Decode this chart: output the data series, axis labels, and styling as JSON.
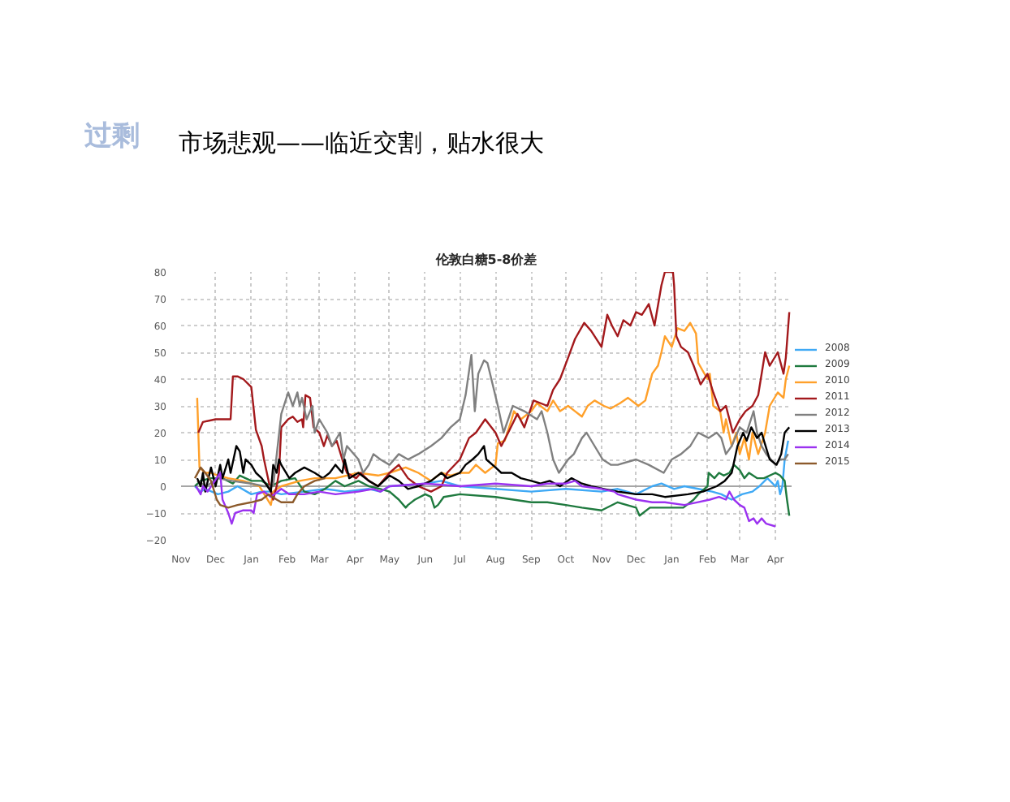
{
  "chart_data": {
    "type": "line",
    "title": "伦敦白糖5-8价差",
    "annotations": [
      "过剩",
      "市场悲观——临近交割，贴水很大"
    ],
    "xlim": [
      "2013-11-01",
      "2015-04-15"
    ],
    "xticks": [
      {
        "value": "2013-11-01",
        "label": "Nov"
      },
      {
        "value": "2013-12-01",
        "label": "Dec"
      },
      {
        "value": "2014-01-01",
        "label": "Jan"
      },
      {
        "value": "2014-02-01",
        "label": "Feb"
      },
      {
        "value": "2014-03-01",
        "label": "Mar"
      },
      {
        "value": "2014-04-01",
        "label": "Apr"
      },
      {
        "value": "2014-05-01",
        "label": "May"
      },
      {
        "value": "2014-06-01",
        "label": "Jun"
      },
      {
        "value": "2014-07-01",
        "label": "Jul"
      },
      {
        "value": "2014-08-01",
        "label": "Aug"
      },
      {
        "value": "2014-09-01",
        "label": "Sep"
      },
      {
        "value": "2014-10-01",
        "label": "Oct"
      },
      {
        "value": "2014-11-01",
        "label": "Nov"
      },
      {
        "value": "2014-12-01",
        "label": "Dec"
      },
      {
        "value": "2015-01-01",
        "label": "Jan"
      },
      {
        "value": "2015-02-01",
        "label": "Feb"
      },
      {
        "value": "2015-03-01",
        "label": "Mar"
      },
      {
        "value": "2015-04-01",
        "label": "Apr"
      }
    ],
    "ylim": [
      -20,
      80
    ],
    "yticks": [
      -20,
      -10,
      0,
      10,
      20,
      30,
      40,
      50,
      60,
      70,
      80
    ],
    "grid": true,
    "legend": "right",
    "line_style": "solid",
    "ref_lines": [
      {
        "axis": "y",
        "value": 0,
        "color": "#a6a6a6"
      }
    ],
    "series": [
      {
        "name": "2008",
        "color": "#3fa9f5",
        "x": [
          "2013-11-13",
          "2013-11-18",
          "2013-11-22",
          "2013-12-03",
          "2013-12-12",
          "2013-12-20",
          "2014-01-01",
          "2014-01-10",
          "2014-01-18",
          "2014-01-27",
          "2014-02-16",
          "2014-03-06",
          "2014-03-23",
          "2014-04-13",
          "2014-04-23",
          "2014-05-01",
          "2014-06-01",
          "2014-06-15",
          "2014-07-01",
          "2014-08-01",
          "2014-09-01",
          "2014-10-01",
          "2014-11-01",
          "2014-11-15",
          "2014-12-01",
          "2014-12-15",
          "2014-12-23",
          "2015-01-03",
          "2015-01-12",
          "2015-01-24",
          "2015-02-05",
          "2015-02-13",
          "2015-02-22",
          "2015-03-03",
          "2015-03-12",
          "2015-03-18",
          "2015-03-25",
          "2015-04-01",
          "2015-04-03",
          "2015-04-05",
          "2015-04-07",
          "2015-04-09",
          "2015-04-12"
        ],
        "values": [
          0,
          -2,
          -1,
          -3,
          -2,
          0,
          -3,
          -2,
          -2,
          -3,
          -2,
          -1,
          -2,
          -1,
          -2,
          0,
          1,
          2,
          0,
          -1,
          -2,
          -1,
          -2,
          -1,
          -3,
          0,
          1,
          -1,
          0,
          -1,
          -2,
          -3,
          -5,
          -3,
          -2,
          0,
          3,
          0,
          2,
          -3,
          0,
          10,
          17
        ]
      },
      {
        "name": "2009",
        "color": "#1f7a3f",
        "x": [
          "2013-11-13",
          "2013-11-18",
          "2013-11-27",
          "2013-12-07",
          "2013-12-16",
          "2013-12-22",
          "2014-01-01",
          "2014-01-10",
          "2014-01-18",
          "2014-01-27",
          "2014-02-08",
          "2014-02-16",
          "2014-02-25",
          "2014-03-06",
          "2014-03-15",
          "2014-03-23",
          "2014-04-04",
          "2014-04-13",
          "2014-04-23",
          "2014-05-01",
          "2014-05-09",
          "2014-05-15",
          "2014-05-17",
          "2014-05-23",
          "2014-06-01",
          "2014-06-06",
          "2014-06-09",
          "2014-06-12",
          "2014-06-17",
          "2014-07-01",
          "2014-08-01",
          "2014-09-01",
          "2014-09-15",
          "2014-10-01",
          "2014-10-15",
          "2014-11-01",
          "2014-11-15",
          "2014-12-01",
          "2014-12-04",
          "2014-12-13",
          "2014-12-26",
          "2015-01-11",
          "2015-01-20",
          "2015-01-24",
          "2015-02-01",
          "2015-02-02",
          "2015-02-07",
          "2015-02-11",
          "2015-02-15",
          "2015-02-20",
          "2015-02-24",
          "2015-03-01",
          "2015-03-05",
          "2015-03-09",
          "2015-03-16",
          "2015-03-22",
          "2015-04-01",
          "2015-04-05",
          "2015-04-09",
          "2015-04-11",
          "2015-04-13"
        ],
        "values": [
          0,
          2,
          3,
          3,
          1,
          4,
          2,
          2,
          0,
          2,
          3,
          -2,
          -3,
          -1,
          2,
          0,
          2,
          0,
          -1,
          -2,
          -5,
          -8,
          -7,
          -5,
          -3,
          -4,
          -8,
          -7,
          -4,
          -3,
          -4,
          -6,
          -6,
          -7,
          -8,
          -9,
          -6,
          -8,
          -11,
          -8,
          -8,
          -8,
          -5,
          -3,
          0,
          5,
          3,
          5,
          4,
          5,
          8,
          6,
          3,
          5,
          3,
          3,
          5,
          4,
          2,
          -5,
          -11
        ]
      },
      {
        "name": "2010",
        "color": "#ffa02a",
        "x": [
          "2013-11-15",
          "2013-11-17",
          "2013-11-22",
          "2013-11-27",
          "2013-12-03",
          "2013-12-12",
          "2013-12-25",
          "2014-01-08",
          "2014-01-18",
          "2014-01-20",
          "2014-01-27",
          "2014-02-12",
          "2014-02-25",
          "2014-03-15",
          "2014-04-04",
          "2014-04-21",
          "2014-05-01",
          "2014-05-15",
          "2014-05-26",
          "2014-06-06",
          "2014-06-15",
          "2014-06-23",
          "2014-07-01",
          "2014-07-09",
          "2014-07-15",
          "2014-07-23",
          "2014-08-01",
          "2014-08-03",
          "2014-08-09",
          "2014-08-15",
          "2014-08-17",
          "2014-08-23",
          "2014-09-01",
          "2014-09-06",
          "2014-09-15",
          "2014-09-20",
          "2014-09-26",
          "2014-10-03",
          "2014-10-09",
          "2014-10-15",
          "2014-10-20",
          "2014-10-26",
          "2014-11-03",
          "2014-11-09",
          "2014-11-17",
          "2014-11-24",
          "2014-12-03",
          "2014-12-09",
          "2014-12-15",
          "2014-12-20",
          "2014-12-23",
          "2014-12-26",
          "2015-01-01",
          "2015-01-06",
          "2015-01-12",
          "2015-01-17",
          "2015-01-22",
          "2015-01-24",
          "2015-02-01",
          "2015-02-03",
          "2015-02-06",
          "2015-02-12",
          "2015-02-15",
          "2015-02-17",
          "2015-02-22",
          "2015-02-26",
          "2015-03-01",
          "2015-03-05",
          "2015-03-09",
          "2015-03-12",
          "2015-03-17",
          "2015-03-23",
          "2015-03-27",
          "2015-04-03",
          "2015-04-08",
          "2015-04-10",
          "2015-04-13"
        ],
        "values": [
          33,
          7,
          5,
          5,
          4,
          3,
          2,
          0,
          -7,
          -2,
          0,
          2,
          3,
          3,
          5,
          4,
          5,
          7,
          5,
          2,
          5,
          4,
          5,
          5,
          8,
          5,
          8,
          16,
          17,
          25,
          28,
          25,
          28,
          31,
          28,
          32,
          28,
          30,
          28,
          26,
          30,
          32,
          30,
          29,
          31,
          33,
          30,
          32,
          42,
          45,
          50,
          56,
          52,
          59,
          58,
          61,
          57,
          46,
          40,
          42,
          30,
          28,
          20,
          25,
          15,
          20,
          12,
          18,
          10,
          20,
          12,
          20,
          30,
          35,
          33,
          40,
          45
        ]
      },
      {
        "name": "2011",
        "color": "#a3191c",
        "x": [
          "2013-11-16",
          "2013-11-20",
          "2013-12-01",
          "2013-12-08",
          "2013-12-14",
          "2013-12-16",
          "2013-12-20",
          "2013-12-25",
          "2014-01-01",
          "2014-01-05",
          "2014-01-10",
          "2014-01-12",
          "2014-01-16",
          "2014-01-18",
          "2014-01-20",
          "2014-01-23",
          "2014-01-25",
          "2014-01-27",
          "2014-02-02",
          "2014-02-06",
          "2014-02-10",
          "2014-02-14",
          "2014-02-15",
          "2014-02-17",
          "2014-02-21",
          "2014-02-24",
          "2014-03-01",
          "2014-03-05",
          "2014-03-08",
          "2014-03-12",
          "2014-03-16",
          "2014-03-21",
          "2014-03-25",
          "2014-04-02",
          "2014-04-06",
          "2014-04-13",
          "2014-04-21",
          "2014-05-01",
          "2014-05-09",
          "2014-05-17",
          "2014-05-26",
          "2014-06-06",
          "2014-06-15",
          "2014-06-20",
          "2014-07-01",
          "2014-07-09",
          "2014-07-15",
          "2014-07-23",
          "2014-08-01",
          "2014-08-06",
          "2014-08-12",
          "2014-08-20",
          "2014-08-26",
          "2014-09-03",
          "2014-09-15",
          "2014-09-20",
          "2014-09-26",
          "2014-10-03",
          "2014-10-09",
          "2014-10-17",
          "2014-10-23",
          "2014-11-01",
          "2014-11-06",
          "2014-11-10",
          "2014-11-15",
          "2014-11-20",
          "2014-11-26",
          "2014-12-01",
          "2014-12-06",
          "2014-12-12",
          "2014-12-17",
          "2014-12-23",
          "2014-12-26",
          "2015-01-02",
          "2015-01-03",
          "2015-01-05",
          "2015-01-09",
          "2015-01-15",
          "2015-01-20",
          "2015-01-26",
          "2015-02-01",
          "2015-02-06",
          "2015-02-12",
          "2015-02-17",
          "2015-02-23",
          "2015-03-01",
          "2015-03-06",
          "2015-03-12",
          "2015-03-17",
          "2015-03-23",
          "2015-03-27",
          "2015-04-03",
          "2015-04-08",
          "2015-04-10",
          "2015-04-13"
        ],
        "values": [
          20,
          24,
          25,
          25,
          25,
          41,
          41,
          40,
          37,
          21,
          15,
          10,
          2,
          -2,
          -5,
          0,
          5,
          22,
          25,
          26,
          24,
          25,
          22,
          34,
          33,
          22,
          20,
          15,
          19,
          15,
          17,
          10,
          5,
          3,
          5,
          2,
          0,
          5,
          8,
          3,
          0,
          -2,
          0,
          5,
          10,
          18,
          20,
          25,
          20,
          15,
          20,
          27,
          22,
          32,
          30,
          36,
          40,
          48,
          55,
          61,
          58,
          52,
          64,
          60,
          56,
          62,
          60,
          65,
          64,
          68,
          60,
          75,
          80,
          80,
          75,
          56,
          52,
          50,
          45,
          38,
          42,
          35,
          28,
          30,
          20,
          25,
          28,
          30,
          34,
          50,
          45,
          50,
          42,
          48,
          65
        ]
      },
      {
        "name": "2012",
        "color": "#808080",
        "x": [
          "2013-11-15",
          "2013-11-23",
          "2013-12-03",
          "2013-12-15",
          "2014-01-01",
          "2014-01-12",
          "2014-01-20",
          "2014-01-27",
          "2014-02-02",
          "2014-02-06",
          "2014-02-10",
          "2014-02-12",
          "2014-02-14",
          "2014-02-18",
          "2014-02-23",
          "2014-02-25",
          "2014-03-01",
          "2014-03-08",
          "2014-03-12",
          "2014-03-19",
          "2014-03-22",
          "2014-03-25",
          "2014-04-04",
          "2014-04-08",
          "2014-04-13",
          "2014-04-17",
          "2014-04-23",
          "2014-05-01",
          "2014-05-09",
          "2014-05-17",
          "2014-05-26",
          "2014-06-06",
          "2014-06-15",
          "2014-06-23",
          "2014-07-01",
          "2014-07-06",
          "2014-07-11",
          "2014-07-14",
          "2014-07-17",
          "2014-07-22",
          "2014-07-25",
          "2014-08-03",
          "2014-08-08",
          "2014-08-16",
          "2014-08-26",
          "2014-09-06",
          "2014-09-10",
          "2014-09-15",
          "2014-09-20",
          "2014-09-25",
          "2014-10-03",
          "2014-10-08",
          "2014-10-15",
          "2014-10-19",
          "2014-10-26",
          "2014-11-02",
          "2014-11-09",
          "2014-11-15",
          "2014-12-01",
          "2014-12-12",
          "2014-12-25",
          "2015-01-01",
          "2015-01-09",
          "2015-01-17",
          "2015-01-24",
          "2015-02-02",
          "2015-02-09",
          "2015-02-13",
          "2015-02-17",
          "2015-02-22",
          "2015-03-01",
          "2015-03-07",
          "2015-03-13",
          "2015-03-16",
          "2015-03-20",
          "2015-03-24",
          "2015-04-01",
          "2015-04-05",
          "2015-04-09",
          "2015-04-12"
        ],
        "values": [
          2,
          0,
          3,
          2,
          1,
          0,
          0,
          27,
          35,
          30,
          35,
          30,
          33,
          25,
          30,
          20,
          25,
          20,
          15,
          20,
          10,
          15,
          10,
          5,
          8,
          12,
          10,
          8,
          12,
          10,
          12,
          15,
          18,
          22,
          25,
          34,
          49,
          28,
          42,
          47,
          46,
          30,
          20,
          30,
          28,
          25,
          28,
          20,
          10,
          5,
          10,
          12,
          18,
          20,
          15,
          10,
          8,
          8,
          10,
          8,
          5,
          10,
          12,
          15,
          20,
          18,
          20,
          18,
          12,
          15,
          22,
          20,
          28,
          20,
          15,
          12,
          8,
          10,
          10,
          12
        ]
      },
      {
        "name": "2013",
        "color": "#000000",
        "x": [
          "2013-11-15",
          "2013-11-18",
          "2013-11-20",
          "2013-11-22",
          "2013-11-27",
          "2013-12-01",
          "2013-12-05",
          "2013-12-07",
          "2013-12-12",
          "2013-12-14",
          "2013-12-19",
          "2013-12-22",
          "2013-12-25",
          "2013-12-27",
          "2014-01-01",
          "2014-01-05",
          "2014-01-10",
          "2014-01-15",
          "2014-01-18",
          "2014-01-20",
          "2014-01-23",
          "2014-01-25",
          "2014-01-27",
          "2014-02-03",
          "2014-02-08",
          "2014-02-16",
          "2014-02-25",
          "2014-03-04",
          "2014-03-10",
          "2014-03-15",
          "2014-03-21",
          "2014-03-23",
          "2014-03-27",
          "2014-04-04",
          "2014-04-13",
          "2014-04-21",
          "2014-05-01",
          "2014-05-09",
          "2014-05-17",
          "2014-05-26",
          "2014-06-06",
          "2014-06-15",
          "2014-06-20",
          "2014-07-01",
          "2014-07-06",
          "2014-07-12",
          "2014-07-17",
          "2014-07-22",
          "2014-07-24",
          "2014-08-01",
          "2014-08-06",
          "2014-08-15",
          "2014-08-23",
          "2014-09-01",
          "2014-09-09",
          "2014-09-17",
          "2014-09-26",
          "2014-10-06",
          "2014-10-15",
          "2014-10-23",
          "2014-11-03",
          "2014-11-15",
          "2014-12-01",
          "2014-12-15",
          "2014-12-26",
          "2015-01-15",
          "2015-01-28",
          "2015-02-09",
          "2015-02-16",
          "2015-02-22",
          "2015-02-27",
          "2015-03-04",
          "2015-03-07",
          "2015-03-11",
          "2015-03-16",
          "2015-03-20",
          "2015-03-22",
          "2015-03-27",
          "2015-04-02",
          "2015-04-06",
          "2015-04-09",
          "2015-04-13"
        ],
        "values": [
          3,
          0,
          5,
          -2,
          7,
          0,
          8,
          3,
          10,
          5,
          15,
          13,
          5,
          10,
          8,
          5,
          3,
          0,
          -2,
          8,
          5,
          10,
          8,
          3,
          5,
          7,
          5,
          3,
          5,
          8,
          5,
          10,
          3,
          5,
          2,
          0,
          4,
          2,
          -1,
          0,
          2,
          5,
          3,
          5,
          8,
          10,
          12,
          15,
          10,
          7,
          5,
          5,
          3,
          2,
          1,
          2,
          0,
          3,
          1,
          0,
          -1,
          -2,
          -3,
          -3,
          -4,
          -3,
          -2,
          0,
          2,
          5,
          15,
          20,
          17,
          22,
          18,
          20,
          17,
          10,
          8,
          12,
          20,
          22
        ]
      },
      {
        "name": "2014",
        "color": "#9b32f0",
        "x": [
          "2013-11-14",
          "2013-11-18",
          "2013-11-20",
          "2013-11-24",
          "2013-12-05",
          "2013-12-07",
          "2013-12-12",
          "2013-12-15",
          "2013-12-18",
          "2013-12-25",
          "2014-01-01",
          "2014-01-03",
          "2014-01-06",
          "2014-01-12",
          "2014-01-18",
          "2014-01-27",
          "2014-02-03",
          "2014-02-16",
          "2014-03-01",
          "2014-03-15",
          "2014-04-04",
          "2014-04-17",
          "2014-04-23",
          "2014-05-01",
          "2014-06-01",
          "2014-07-01",
          "2014-08-01",
          "2014-09-01",
          "2014-09-15",
          "2014-10-01",
          "2014-10-09",
          "2014-10-15",
          "2014-11-01",
          "2014-11-12",
          "2014-11-15",
          "2014-12-01",
          "2014-12-15",
          "2014-12-26",
          "2015-01-12",
          "2015-01-23",
          "2015-02-03",
          "2015-02-11",
          "2015-02-17",
          "2015-02-20",
          "2015-02-24",
          "2015-03-01",
          "2015-03-05",
          "2015-03-09",
          "2015-03-13",
          "2015-03-16",
          "2015-03-20",
          "2015-03-24",
          "2015-04-01"
        ],
        "values": [
          0,
          -3,
          0,
          -2,
          5,
          -5,
          -10,
          -14,
          -10,
          -9,
          -9,
          -10,
          -3,
          -2,
          -4,
          -1,
          -3,
          -3,
          -2,
          -3,
          -2,
          -1,
          -2,
          0,
          1,
          0,
          1,
          0,
          1,
          1,
          2,
          0,
          -1,
          -2,
          -3,
          -5,
          -6,
          -6,
          -7,
          -6,
          -5,
          -4,
          -5,
          -2,
          -5,
          -7,
          -8,
          -13,
          -12,
          -14,
          -12,
          -14,
          -15
        ]
      },
      {
        "name": "2015",
        "color": "#8c5a2b",
        "x": [
          "2013-11-13",
          "2013-11-18",
          "2013-11-22",
          "2013-11-27",
          "2013-12-02",
          "2013-12-05",
          "2013-12-12",
          "2013-12-20",
          "2014-01-01",
          "2014-01-10",
          "2014-01-16",
          "2014-01-23",
          "2014-01-27",
          "2014-02-06",
          "2014-02-10",
          "2014-02-16",
          "2014-02-25",
          "2014-03-06"
        ],
        "values": [
          3,
          7,
          5,
          2,
          -5,
          -7,
          -8,
          -7,
          -6,
          -5,
          -3,
          -5,
          -6,
          -6,
          -3,
          0,
          2,
          3
        ]
      }
    ]
  }
}
